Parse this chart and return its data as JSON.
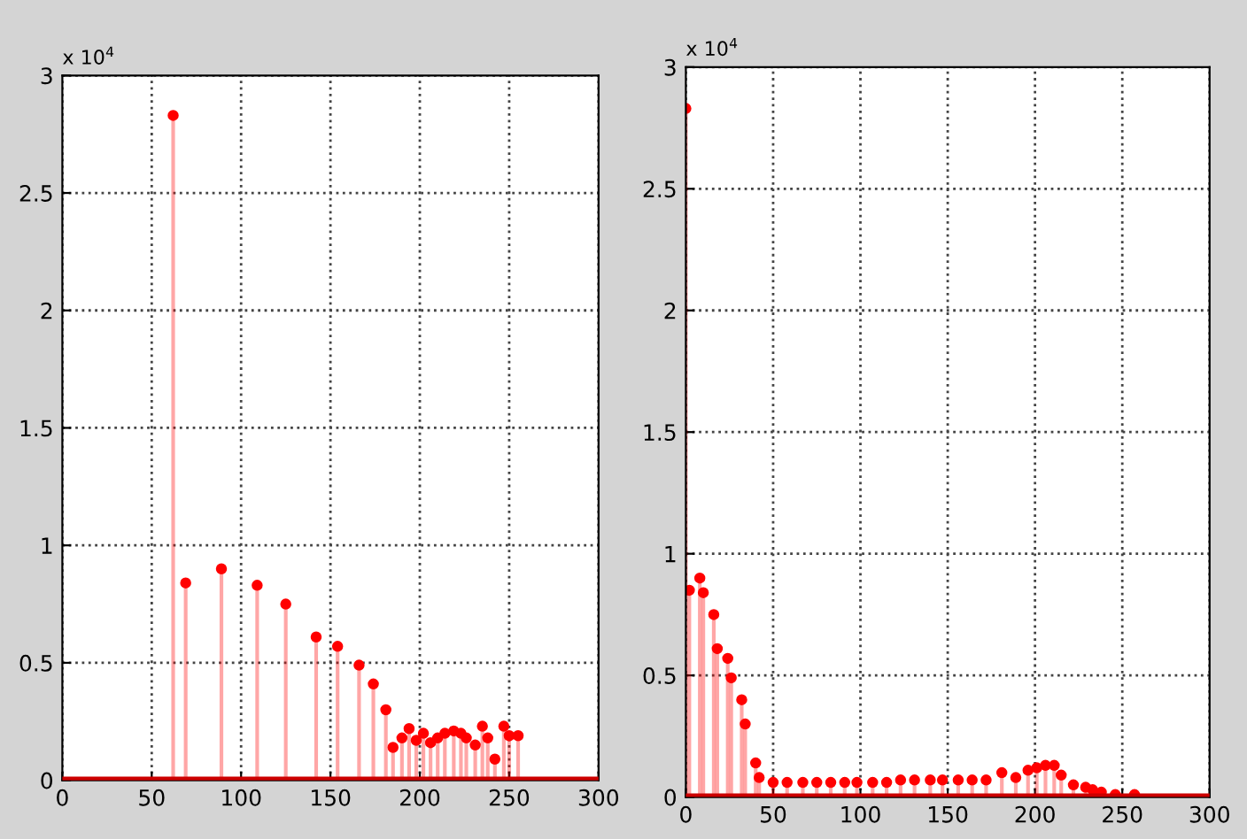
{
  "chart_data": [
    {
      "type": "lollipop",
      "annotations": [
        "x 10$^{4}$"
      ],
      "xlim": [
        0,
        300
      ],
      "xticks": [
        0,
        50,
        100,
        150,
        200,
        250,
        300
      ],
      "ylim": [
        0,
        3
      ],
      "yticks": [
        0,
        0.5,
        1,
        1.5,
        2,
        2.5,
        3
      ],
      "grid": true,
      "marker": "circle",
      "ref_lines": [
        {
          "axis": "y",
          "value": 0,
          "color": "#cc0000"
        }
      ],
      "series": [
        {
          "color": "#ff0000",
          "x": [
            62,
            69,
            89,
            109,
            125,
            142,
            154,
            166,
            174,
            181,
            185,
            190,
            194,
            198,
            202,
            206,
            210,
            214,
            219,
            223,
            226,
            231,
            235,
            238,
            242,
            247,
            250,
            255
          ],
          "values": [
            2.83,
            0.84,
            0.9,
            0.83,
            0.75,
            0.61,
            0.57,
            0.49,
            0.41,
            0.3,
            0.14,
            0.18,
            0.22,
            0.17,
            0.2,
            0.16,
            0.18,
            0.2,
            0.21,
            0.2,
            0.18,
            0.15,
            0.23,
            0.18,
            0.09,
            0.23,
            0.19,
            0.19
          ]
        }
      ]
    },
    {
      "type": "lollipop",
      "annotations": [
        "x 10$^{4}$"
      ],
      "xlim": [
        0,
        300
      ],
      "xticks": [
        0,
        50,
        100,
        150,
        200,
        250,
        300
      ],
      "ylim": [
        0,
        3
      ],
      "yticks": [
        0,
        0.5,
        1,
        1.5,
        2,
        2.5,
        3
      ],
      "grid": true,
      "marker": "circle",
      "ref_lines": [
        {
          "axis": "y",
          "value": 0,
          "color": "#cc0000"
        }
      ],
      "series": [
        {
          "color": "#ff0000",
          "x": [
            0,
            2,
            8,
            10,
            16,
            18,
            24,
            26,
            32,
            34,
            40,
            42,
            50,
            58,
            67,
            75,
            83,
            91,
            98,
            107,
            115,
            123,
            131,
            140,
            147,
            156,
            164,
            172,
            181,
            189,
            196,
            201,
            206,
            211,
            215,
            222,
            229,
            233,
            238,
            246,
            257
          ],
          "values": [
            2.83,
            0.85,
            0.9,
            0.84,
            0.75,
            0.61,
            0.57,
            0.49,
            0.4,
            0.3,
            0.14,
            0.08,
            0.06,
            0.06,
            0.06,
            0.06,
            0.06,
            0.06,
            0.06,
            0.06,
            0.06,
            0.07,
            0.07,
            0.07,
            0.07,
            0.07,
            0.07,
            0.07,
            0.1,
            0.08,
            0.11,
            0.12,
            0.13,
            0.13,
            0.09,
            0.05,
            0.04,
            0.03,
            0.02,
            0.01,
            0.01
          ]
        }
      ]
    }
  ]
}
